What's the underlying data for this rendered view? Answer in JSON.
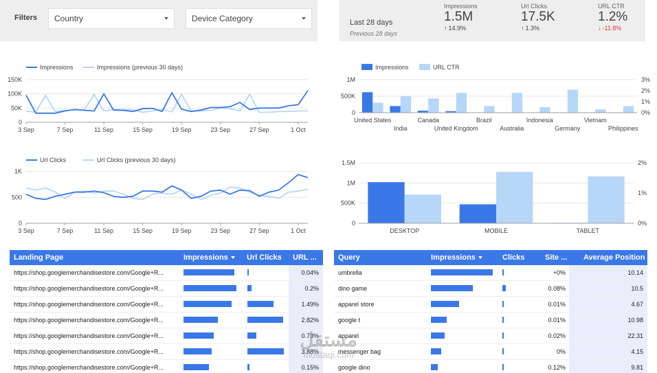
{
  "filters": {
    "title": "Filters",
    "country": "Country",
    "device": "Device Category"
  },
  "summary": {
    "period": "Last 28 days",
    "previous": "Previous 28 days",
    "kpis": [
      {
        "name": "Impressions",
        "value": "1.5M",
        "delta": "14.9%",
        "direction": "up"
      },
      {
        "name": "Url Clicks",
        "value": "17.5K",
        "delta": "1.3%",
        "direction": "up"
      },
      {
        "name": "URL CTR",
        "value": "1.2%",
        "delta": "-11.8%",
        "direction": "down"
      }
    ]
  },
  "colors": {
    "primary": "#3b78e7",
    "secondary": "#b7d7f8",
    "negative": "#e53935"
  },
  "chart_data": [
    {
      "type": "line",
      "legend": "top-left",
      "x": [
        "3 Sep",
        "4 Sep",
        "5 Sep",
        "6 Sep",
        "7 Sep",
        "8 Sep",
        "9 Sep",
        "10 Sep",
        "11 Sep",
        "12 Sep",
        "13 Sep",
        "14 Sep",
        "15 Sep",
        "16 Sep",
        "17 Sep",
        "18 Sep",
        "19 Sep",
        "20 Sep",
        "21 Sep",
        "22 Sep",
        "23 Sep",
        "24 Sep",
        "25 Sep",
        "26 Sep",
        "27 Sep",
        "28 Sep",
        "29 Sep",
        "30 Sep",
        "1 Oct",
        "2 Oct"
      ],
      "xticks": [
        "3 Sep",
        "7 Sep",
        "11 Sep",
        "15 Sep",
        "19 Sep",
        "23 Sep",
        "27 Sep",
        "1 Oct"
      ],
      "yticks": [
        "0",
        "50K",
        "100K",
        "150K"
      ],
      "ylim": [
        0,
        150000
      ],
      "series": [
        {
          "name": "Impressions",
          "values": [
            95000,
            32000,
            32000,
            32000,
            40000,
            45000,
            42000,
            40000,
            100000,
            43000,
            42000,
            38000,
            48000,
            49000,
            38000,
            104000,
            46000,
            38000,
            43000,
            52000,
            52000,
            55000,
            70000,
            45000,
            50000,
            50000,
            50000,
            58000,
            62000,
            112000
          ]
        },
        {
          "name": "Impressions (previous 30 days)",
          "values": [
            40000,
            35000,
            95000,
            38000,
            42000,
            43000,
            45000,
            98000,
            40000,
            45000,
            45000,
            44000,
            35000,
            40000,
            45000,
            37000,
            98000,
            40000,
            40000,
            42000,
            50000,
            48000,
            40000,
            98000,
            35000,
            35000,
            38000,
            38000,
            40000,
            40000
          ]
        }
      ]
    },
    {
      "type": "bar",
      "legend": "top-left",
      "categories": [
        "United States",
        "India",
        "Canada",
        "United Kingdom",
        "Brazil",
        "Australia",
        "Indonesia",
        "Germany",
        "Vietnam",
        "Philippines"
      ],
      "yticks_left": [
        "0",
        "500K",
        "1M"
      ],
      "yticks_right": [
        "0%",
        "1%",
        "2%",
        "3%"
      ],
      "ylim_left": [
        0,
        1000000
      ],
      "ylim_right": [
        0,
        3
      ],
      "series": [
        {
          "name": "Impressions",
          "values": [
            620000,
            200000,
            60000,
            45000,
            5000,
            8000,
            6000,
            8000,
            4000,
            5000
          ]
        },
        {
          "name": "URL CTR",
          "values": [
            0.9,
            1.5,
            1.3,
            1.8,
            0.6,
            1.8,
            0.5,
            2.1,
            0.3,
            0.6
          ]
        }
      ]
    },
    {
      "type": "line",
      "legend": "top-left",
      "x": [
        "3 Sep",
        "4 Sep",
        "5 Sep",
        "6 Sep",
        "7 Sep",
        "8 Sep",
        "9 Sep",
        "10 Sep",
        "11 Sep",
        "12 Sep",
        "13 Sep",
        "14 Sep",
        "15 Sep",
        "16 Sep",
        "17 Sep",
        "18 Sep",
        "19 Sep",
        "20 Sep",
        "21 Sep",
        "22 Sep",
        "23 Sep",
        "24 Sep",
        "25 Sep",
        "26 Sep",
        "27 Sep",
        "28 Sep",
        "29 Sep",
        "30 Sep",
        "1 Oct",
        "2 Oct"
      ],
      "xticks": [
        "3 Sep",
        "7 Sep",
        "11 Sep",
        "15 Sep",
        "19 Sep",
        "23 Sep",
        "27 Sep",
        "1 Oct"
      ],
      "yticks": [
        "0",
        "500",
        "1K"
      ],
      "ylim": [
        0,
        1100
      ],
      "series": [
        {
          "name": "Url Clicks",
          "values": [
            560,
            480,
            460,
            520,
            560,
            600,
            600,
            620,
            590,
            520,
            500,
            520,
            620,
            620,
            600,
            720,
            640,
            480,
            520,
            620,
            640,
            560,
            640,
            630,
            520,
            600,
            640,
            780,
            940,
            880
          ]
        },
        {
          "name": "Url Clicks (previous 30 days)",
          "values": [
            680,
            640,
            680,
            600,
            480,
            600,
            620,
            580,
            620,
            620,
            560,
            480,
            460,
            560,
            580,
            560,
            640,
            560,
            460,
            540,
            580,
            700,
            680,
            600,
            540,
            520,
            480,
            600,
            620,
            660
          ]
        }
      ]
    },
    {
      "type": "bar",
      "categories": [
        "DESKTOP",
        "MOBILE",
        "TABLET"
      ],
      "yticks_left": [
        "0",
        "500K",
        "1M",
        "1.5M"
      ],
      "yticks_right": [
        "0%",
        "1%",
        "2%"
      ],
      "ylim_left": [
        0,
        1500000
      ],
      "ylim_right": [
        0,
        2
      ],
      "series": [
        {
          "name": "Impressions",
          "values": [
            1020000,
            470000,
            10000
          ]
        },
        {
          "name": "URL CTR",
          "values": [
            0.95,
            1.7,
            1.55
          ]
        }
      ]
    }
  ],
  "landing_table": {
    "headers": [
      "Landing Page",
      "Impressions",
      "Url Clicks",
      "URL ..."
    ],
    "rows": [
      {
        "page": "https://shop.googlemerchandisestore.com/Google+R...",
        "impressions": 0.92,
        "clicks": 0.02,
        "ctr": "0.04%"
      },
      {
        "page": "https://shop.googlemerchandisestore.com/Google+R...",
        "impressions": 0.96,
        "clicks": 0.12,
        "ctr": "0.2%"
      },
      {
        "page": "https://shop.googlemerchandisestore.com/Google+R...",
        "impressions": 0.88,
        "clicks": 0.72,
        "ctr": "1.49%"
      },
      {
        "page": "https://shop.googlemerchandisestore.com/Google+R...",
        "impressions": 0.63,
        "clicks": 0.98,
        "ctr": "2.82%"
      },
      {
        "page": "https://shop.googlemerchandisestore.com/Google+R...",
        "impressions": 0.55,
        "clicks": 0.24,
        "ctr": "0.73%"
      },
      {
        "page": "https://shop.googlemerchandisestore.com/Google+R...",
        "impressions": 0.51,
        "clicks": 1.0,
        "ctr": "3.88%"
      },
      {
        "page": "https://shop.googlemerchandisestore.com/Google+R...",
        "impressions": 0.46,
        "clicks": 0.05,
        "ctr": "0.15%"
      }
    ]
  },
  "query_table": {
    "headers": [
      "Query",
      "Impressions",
      "Clicks",
      "Site ...",
      "Average Position"
    ],
    "rows": [
      {
        "query": "umbrella",
        "impressions": 1.0,
        "clicks": 0.02,
        "ctr": "+0%",
        "position": "10.14"
      },
      {
        "query": "dino game",
        "impressions": 0.68,
        "clicks": 0.06,
        "ctr": "0.08%",
        "position": "10.5"
      },
      {
        "query": "apparel store",
        "impressions": 0.46,
        "clicks": 0.02,
        "ctr": "0.01%",
        "position": "4.67"
      },
      {
        "query": "google t",
        "impressions": 0.25,
        "clicks": 0.02,
        "ctr": "0.01%",
        "position": "10.98"
      },
      {
        "query": "apparel",
        "impressions": 0.22,
        "clicks": 0.02,
        "ctr": "0.02%",
        "position": "22.31"
      },
      {
        "query": "messenger bag",
        "impressions": 0.17,
        "clicks": 0.0,
        "ctr": "0%",
        "position": "4.15"
      },
      {
        "query": "google dino",
        "impressions": 0.11,
        "clicks": 0.02,
        "ctr": "0.12%",
        "position": "9.81"
      }
    ]
  },
  "watermark": {
    "arabic": "مستقل",
    "latin": "mostaqi.com"
  }
}
